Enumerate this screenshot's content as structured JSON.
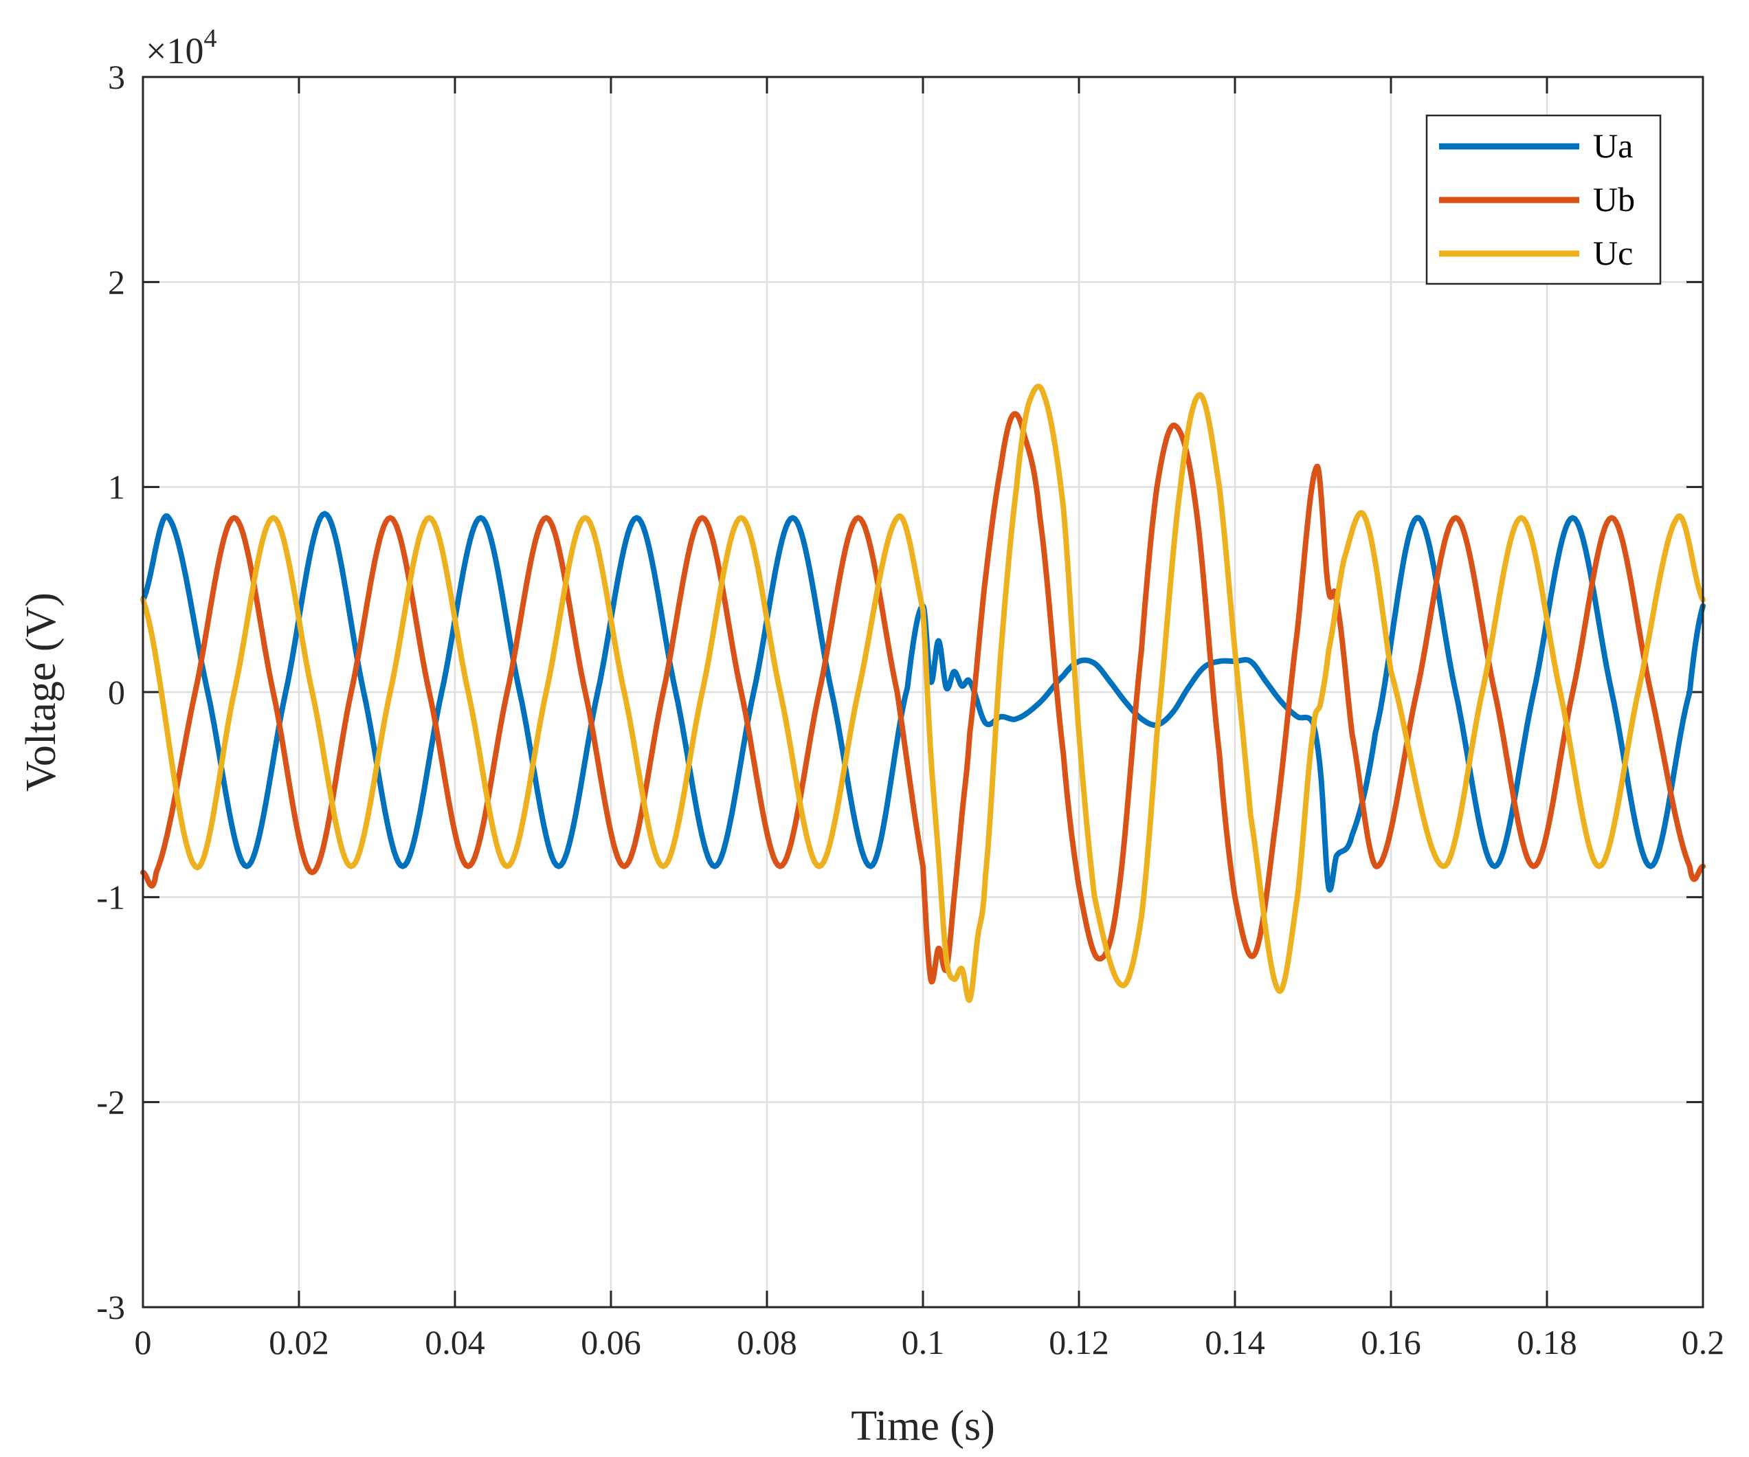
{
  "chart_data": {
    "type": "line",
    "xlabel": "Time (s)",
    "ylabel": "Voltage (V)",
    "y_multiplier": "×10",
    "y_multiplier_exponent": "4",
    "xlim": [
      0,
      0.2
    ],
    "ylim": [
      -3,
      3
    ],
    "x_ticks": [
      0,
      0.02,
      0.04,
      0.06,
      0.08,
      0.1,
      0.12,
      0.14,
      0.16,
      0.18,
      0.2
    ],
    "x_tick_labels": [
      "0",
      "0.02",
      "0.04",
      "0.06",
      "0.08",
      "0.1",
      "0.12",
      "0.14",
      "0.16",
      "0.18",
      "0.2"
    ],
    "y_ticks": [
      -3,
      -2,
      -1,
      0,
      1,
      2,
      3
    ],
    "y_tick_labels": [
      "-3",
      "-2",
      "-1",
      "0",
      "1",
      "2",
      "3"
    ],
    "grid": true,
    "legend_position": "top-right",
    "series": [
      {
        "name": "Ua",
        "color": "#0072BD",
        "x": [
          0,
          0.0033,
          0.0083,
          0.0133,
          0.0183,
          0.0233,
          0.0283,
          0.0333,
          0.0383,
          0.0433,
          0.0483,
          0.0533,
          0.0583,
          0.0633,
          0.0683,
          0.0733,
          0.0783,
          0.0833,
          0.0883,
          0.0933,
          0.098,
          0.1,
          0.101,
          0.102,
          0.103,
          0.104,
          0.105,
          0.106,
          0.108,
          0.11,
          0.112,
          0.115,
          0.118,
          0.12,
          0.122,
          0.124,
          0.126,
          0.128,
          0.13,
          0.132,
          0.134,
          0.136,
          0.138,
          0.14,
          0.142,
          0.144,
          0.146,
          0.148,
          0.15,
          0.151,
          0.152,
          0.153,
          0.155,
          0.158,
          0.1633,
          0.1683,
          0.1733,
          0.1783,
          0.1833,
          0.1883,
          0.1933,
          0.1983,
          0.2
        ],
        "y": [
          0.45,
          0.85,
          0,
          -0.85,
          0,
          0.87,
          0,
          -0.85,
          0,
          0.85,
          0,
          -0.85,
          0,
          0.85,
          0,
          -0.85,
          0,
          0.85,
          0,
          -0.85,
          0.02,
          0.42,
          0.05,
          0.25,
          0.02,
          0.1,
          0.03,
          0.05,
          -0.15,
          -0.12,
          -0.13,
          -0.05,
          0.08,
          0.15,
          0.14,
          0.05,
          -0.05,
          -0.13,
          -0.16,
          -0.1,
          0.02,
          0.12,
          0.15,
          0.15,
          0.15,
          0.05,
          -0.05,
          -0.12,
          -0.15,
          -0.4,
          -0.95,
          -0.8,
          -0.7,
          -0.2,
          0.85,
          0,
          -0.85,
          0,
          0.85,
          0,
          -0.85,
          0,
          0.42
        ]
      },
      {
        "name": "Ub",
        "color": "#D95319",
        "x": [
          0,
          0.0017,
          0.0067,
          0.0117,
          0.0167,
          0.0217,
          0.0267,
          0.0317,
          0.0367,
          0.0417,
          0.0467,
          0.0517,
          0.0567,
          0.0617,
          0.0667,
          0.0717,
          0.0767,
          0.0817,
          0.0867,
          0.0917,
          0.0967,
          0.1,
          0.101,
          0.102,
          0.103,
          0.104,
          0.105,
          0.106,
          0.108,
          0.11,
          0.1115,
          0.113,
          0.115,
          0.118,
          0.12,
          0.1225,
          0.125,
          0.128,
          0.13,
          0.1323,
          0.135,
          0.138,
          0.14,
          0.1425,
          0.145,
          0.148,
          0.1505,
          0.152,
          0.153,
          0.155,
          0.1583,
          0.1633,
          0.1683,
          0.1733,
          0.1783,
          0.1833,
          0.1883,
          0.1933,
          0.1983,
          0.2
        ],
        "y": [
          -0.88,
          -0.88,
          0,
          0.85,
          0,
          -0.88,
          0,
          0.85,
          0,
          -0.85,
          0,
          0.85,
          0,
          -0.85,
          0,
          0.85,
          0,
          -0.85,
          0,
          0.85,
          0,
          -0.85,
          -1.4,
          -1.25,
          -1.35,
          -1.0,
          -0.6,
          -0.2,
          0.55,
          1.1,
          1.35,
          1.25,
          0.85,
          -0.3,
          -0.95,
          -1.3,
          -1.0,
          0.2,
          1.0,
          1.3,
          0.9,
          -0.3,
          -1.0,
          -1.28,
          -0.7,
          0.3,
          1.1,
          0.5,
          0.45,
          -0.2,
          -0.85,
          0,
          0.85,
          0,
          -0.85,
          0,
          0.85,
          0,
          -0.85,
          -0.85
        ]
      },
      {
        "name": "Uc",
        "color": "#EDB120",
        "x": [
          0,
          0.0067,
          0.0117,
          0.0167,
          0.0217,
          0.0267,
          0.0317,
          0.0367,
          0.0417,
          0.0467,
          0.0517,
          0.0567,
          0.0617,
          0.0667,
          0.0717,
          0.0767,
          0.0817,
          0.0867,
          0.0917,
          0.0967,
          0.1,
          0.101,
          0.102,
          0.103,
          0.104,
          0.105,
          0.106,
          0.107,
          0.108,
          0.11,
          0.112,
          0.1135,
          0.1155,
          0.118,
          0.12,
          0.122,
          0.1255,
          0.128,
          0.13,
          0.133,
          0.1355,
          0.138,
          0.14,
          0.142,
          0.1455,
          0.148,
          0.15,
          0.151,
          0.152,
          0.154,
          0.1567,
          0.16,
          0.1667,
          0.1717,
          0.1767,
          0.1817,
          0.1867,
          0.1917,
          0.1967,
          0.2
        ],
        "y": [
          0.45,
          -0.85,
          0,
          0.85,
          0,
          -0.85,
          0,
          0.85,
          0,
          -0.85,
          0,
          0.85,
          0,
          -0.85,
          0,
          0.85,
          0,
          -0.85,
          0,
          0.85,
          0.4,
          -0.3,
          -0.8,
          -1.3,
          -1.4,
          -1.35,
          -1.5,
          -1.2,
          -0.9,
          0.2,
          1.0,
          1.4,
          1.45,
          0.9,
          -0.2,
          -1.0,
          -1.43,
          -1.1,
          -0.2,
          1.0,
          1.45,
          1.0,
          0.2,
          -0.6,
          -1.45,
          -1.0,
          -0.2,
          -0.05,
          0.2,
          0.65,
          0.85,
          0.1,
          -0.85,
          0,
          0.85,
          0,
          -0.85,
          0,
          0.85,
          0.45
        ]
      }
    ]
  }
}
